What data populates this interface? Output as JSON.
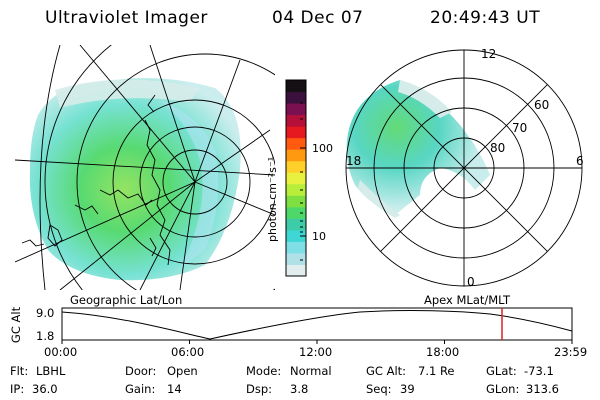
{
  "header": {
    "title": "Ultraviolet Imager",
    "date": "04 Dec 07",
    "time": "20:49:43 UT"
  },
  "colorbar": {
    "unit_label": "photon cm⁻²s⁻¹",
    "tick_100": "100",
    "tick_10": "10",
    "scale": "log",
    "colors": [
      "#e2eeee",
      "#b0e0e8",
      "#7ee0e6",
      "#3fd6d6",
      "#3ecba8",
      "#4fd86a",
      "#7ee040",
      "#b8ee3a",
      "#e8f040",
      "#ffd02a",
      "#ff9a10",
      "#ff5a10",
      "#e61820",
      "#b4103a",
      "#7a1050",
      "#3a103c",
      "#141014"
    ]
  },
  "geo_panel": {
    "label": "Geographic Lat/Lon"
  },
  "apex_panel": {
    "label": "Apex MLat/MLT",
    "mlt_12": "12",
    "mlt_18": "18",
    "mlt_6": "6",
    "mlt_0": "0",
    "lat_60": "60",
    "lat_70": "70",
    "lat_80": "80"
  },
  "altitude_plot": {
    "ylabel": "GC Alt",
    "y_max": "9.0",
    "y_min": "1.8",
    "x_ticks": [
      "00:00",
      "06:00",
      "12:00",
      "18:00",
      "23:59"
    ],
    "marker_color": "#e02020"
  },
  "info": {
    "filter_label": "Flt:",
    "filter_value": "LBHL",
    "door_label": "Door:",
    "door_value": "Open",
    "mode_label": "Mode:",
    "mode_value": "Normal",
    "gcalt_label": "GC Alt:",
    "gcalt_value": "7.1 Re",
    "glat_label": "GLat:",
    "glat_value": "-73.1",
    "ip_label": "IP:",
    "ip_value": "36.0",
    "gain_label": "Gain:",
    "gain_value": "14",
    "dsp_label": "Dsp:",
    "dsp_value": "3.8",
    "seq_label": "Seq:",
    "seq_value": "39",
    "glon_label": "GLon:",
    "glon_value": "313.6"
  }
}
